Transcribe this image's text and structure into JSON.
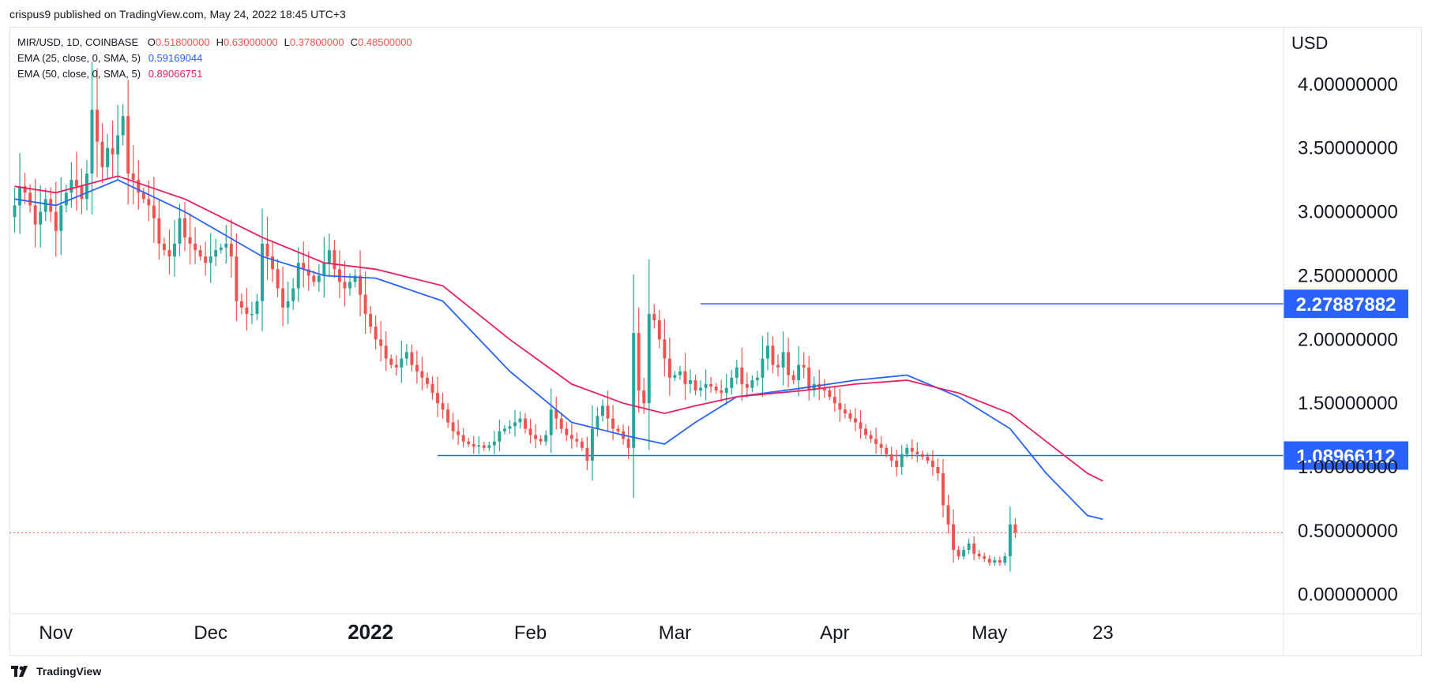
{
  "header": {
    "published": "crispus9 published on TradingView.com, May 24, 2022 18:45 UTC+3"
  },
  "legend": {
    "symbol": "MIR/USD, 1D, COINBASE",
    "ohlc": [
      {
        "k": "O",
        "v": "0.51800000"
      },
      {
        "k": "H",
        "v": "0.63000000"
      },
      {
        "k": "L",
        "v": "0.37800000"
      },
      {
        "k": "C",
        "v": "0.48500000"
      }
    ],
    "ema25": {
      "label": "EMA (25, close, 0, SMA, 5)",
      "value": "0.59169044",
      "color": "#2962ff"
    },
    "ema50": {
      "label": "EMA (50, close, 0, SMA, 5)",
      "value": "0.89066751",
      "color": "#e91e63"
    }
  },
  "footer": {
    "brand": "TradingView"
  },
  "chart_data": {
    "type": "candlestick",
    "currency": "USD",
    "y_ticks": [
      "4.00000000",
      "3.50000000",
      "3.00000000",
      "2.50000000",
      "2.00000000",
      "1.50000000",
      "1.00000000",
      "0.50000000",
      "0.00000000"
    ],
    "y_tick_values": [
      4.0,
      3.5,
      3.0,
      2.5,
      2.0,
      1.5,
      1.0,
      0.5,
      0.0
    ],
    "ylim": [
      -0.15,
      4.45
    ],
    "x_ticks": [
      {
        "label": "Nov",
        "day": 0,
        "bold": false
      },
      {
        "label": "Dec",
        "day": 30,
        "bold": false
      },
      {
        "label": "2022",
        "day": 61,
        "bold": true
      },
      {
        "label": "Feb",
        "day": 92,
        "bold": false
      },
      {
        "label": "Mar",
        "day": 120,
        "bold": false
      },
      {
        "label": "Apr",
        "day": 151,
        "bold": false
      },
      {
        "label": "May",
        "day": 181,
        "bold": false
      },
      {
        "label": "23",
        "day": 203,
        "bold": false
      }
    ],
    "first_day": -8,
    "last_day": 203,
    "closes": [
      3.05,
      3.2,
      3.15,
      3.05,
      2.9,
      3.0,
      3.1,
      3.0,
      2.85,
      3.05,
      3.15,
      3.25,
      3.2,
      3.1,
      3.3,
      3.8,
      3.55,
      3.35,
      3.5,
      3.45,
      3.6,
      3.75,
      3.3,
      3.25,
      3.15,
      3.1,
      3.05,
      2.95,
      2.75,
      2.7,
      2.65,
      2.75,
      2.95,
      2.8,
      2.75,
      2.7,
      2.65,
      2.6,
      2.65,
      2.7,
      2.72,
      2.75,
      2.65,
      2.3,
      2.25,
      2.2,
      2.2,
      2.3,
      2.75,
      2.65,
      2.55,
      2.4,
      2.25,
      2.3,
      2.4,
      2.6,
      2.55,
      2.5,
      2.45,
      2.5,
      2.6,
      2.7,
      2.55,
      2.45,
      2.4,
      2.45,
      2.5,
      2.35,
      2.2,
      2.1,
      2.0,
      1.95,
      1.85,
      1.8,
      1.78,
      1.85,
      1.9,
      1.8,
      1.75,
      1.7,
      1.65,
      1.58,
      1.5,
      1.45,
      1.35,
      1.28,
      1.25,
      1.2,
      1.18,
      1.16,
      1.17,
      1.15,
      1.17,
      1.2,
      1.28,
      1.3,
      1.32,
      1.35,
      1.38,
      1.3,
      1.25,
      1.22,
      1.2,
      1.25,
      1.45,
      1.38,
      1.3,
      1.25,
      1.22,
      1.2,
      1.15,
      1.05,
      1.3,
      1.4,
      1.48,
      1.38,
      1.3,
      1.28,
      1.22,
      1.15,
      2.05,
      1.6,
      1.5,
      2.2,
      2.15,
      2.0,
      1.85,
      1.7,
      1.72,
      1.75,
      1.65,
      1.68,
      1.6,
      1.62,
      1.65,
      1.63,
      1.6,
      1.58,
      1.62,
      1.7,
      1.78,
      1.65,
      1.62,
      1.68,
      1.7,
      1.85,
      1.95,
      1.8,
      1.78,
      1.9,
      1.72,
      1.68,
      1.8,
      1.78,
      1.6,
      1.65,
      1.62,
      1.6,
      1.55,
      1.5,
      1.45,
      1.42,
      1.38,
      1.35,
      1.3,
      1.25,
      1.22,
      1.18,
      1.15,
      1.1,
      1.05,
      1.0,
      1.1,
      1.15,
      1.12,
      1.1,
      1.08,
      1.05,
      1.0,
      0.95,
      0.7,
      0.55,
      0.35,
      0.3,
      0.35,
      0.4,
      0.32,
      0.3,
      0.28,
      0.25,
      0.27,
      0.25,
      0.3,
      0.55,
      0.485
    ],
    "ema25": [
      [
        -8,
        3.1
      ],
      [
        0,
        3.05
      ],
      [
        12,
        3.25
      ],
      [
        25,
        3.0
      ],
      [
        40,
        2.65
      ],
      [
        52,
        2.5
      ],
      [
        62,
        2.48
      ],
      [
        75,
        2.3
      ],
      [
        88,
        1.75
      ],
      [
        100,
        1.35
      ],
      [
        110,
        1.25
      ],
      [
        118,
        1.18
      ],
      [
        124,
        1.35
      ],
      [
        132,
        1.55
      ],
      [
        145,
        1.62
      ],
      [
        155,
        1.68
      ],
      [
        165,
        1.72
      ],
      [
        175,
        1.55
      ],
      [
        185,
        1.3
      ],
      [
        192,
        0.95
      ],
      [
        200,
        0.62
      ],
      [
        203,
        0.59
      ]
    ],
    "ema50": [
      [
        -8,
        3.2
      ],
      [
        0,
        3.15
      ],
      [
        12,
        3.28
      ],
      [
        25,
        3.1
      ],
      [
        40,
        2.8
      ],
      [
        52,
        2.6
      ],
      [
        62,
        2.55
      ],
      [
        75,
        2.42
      ],
      [
        88,
        2.0
      ],
      [
        100,
        1.65
      ],
      [
        110,
        1.5
      ],
      [
        118,
        1.42
      ],
      [
        124,
        1.48
      ],
      [
        132,
        1.55
      ],
      [
        145,
        1.6
      ],
      [
        155,
        1.65
      ],
      [
        165,
        1.68
      ],
      [
        175,
        1.58
      ],
      [
        185,
        1.42
      ],
      [
        192,
        1.2
      ],
      [
        200,
        0.95
      ],
      [
        203,
        0.89
      ]
    ],
    "levels": [
      {
        "value": 2.27887882,
        "label": "2.27887882",
        "from_day": 125
      },
      {
        "value": 1.08966112,
        "label": "1.08966112",
        "from_day": 74
      }
    ],
    "last_price": 0.485,
    "colors": {
      "up": "#26a69a",
      "down": "#ef5350",
      "level": "#2962ff",
      "ema25": "#2962ff",
      "ema50": "#e91e63",
      "last_price": "#ef5350"
    }
  }
}
